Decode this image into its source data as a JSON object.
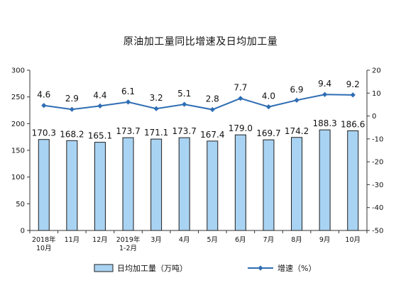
{
  "chart_data": {
    "type": "bar+line",
    "title": "原油加工量同比增速及日均加工量",
    "categories": [
      [
        "2018年",
        "10月"
      ],
      [
        "11月"
      ],
      [
        "12月"
      ],
      [
        "2019年",
        "1-2月"
      ],
      [
        "3月"
      ],
      [
        "4月"
      ],
      [
        "5月"
      ],
      [
        "6月"
      ],
      [
        "7月"
      ],
      [
        "8月"
      ],
      [
        "9月"
      ],
      [
        "10月"
      ]
    ],
    "series": [
      {
        "name": "日均加工量（万吨）",
        "type": "bar",
        "axis": "left",
        "values": [
          170.3,
          168.2,
          165.1,
          173.7,
          171.1,
          173.7,
          167.4,
          179.0,
          169.7,
          174.2,
          188.3,
          186.6
        ],
        "labels": [
          "170.3",
          "168.2",
          "165.1",
          "173.7",
          "171.1",
          "173.7",
          "167.4",
          "179.0",
          "169.7",
          "174.2",
          "188.3",
          "186.6"
        ]
      },
      {
        "name": "增速（%）",
        "type": "line",
        "axis": "right",
        "values": [
          4.6,
          2.9,
          4.4,
          6.1,
          3.2,
          5.1,
          2.8,
          7.7,
          4.0,
          6.9,
          9.4,
          9.2
        ],
        "labels": [
          "4.6",
          "2.9",
          "4.4",
          "6.1",
          "3.2",
          "5.1",
          "2.8",
          "7.7",
          "4.0",
          "6.9",
          "9.4",
          "9.2"
        ]
      }
    ],
    "left_axis": {
      "ylim": [
        0,
        300
      ],
      "ticks": [
        0,
        50,
        100,
        150,
        200,
        250,
        300
      ]
    },
    "right_axis": {
      "ylim": [
        -50,
        20
      ],
      "ticks": [
        -50,
        -40,
        -30,
        -20,
        -10,
        0,
        10,
        20
      ]
    },
    "grid": false,
    "legend_position": "bottom",
    "colors": {
      "bar_fill": "#a9d3f2",
      "bar_stroke": "#1f1f1f",
      "line": "#2e6db3",
      "axis": "#333333"
    }
  }
}
